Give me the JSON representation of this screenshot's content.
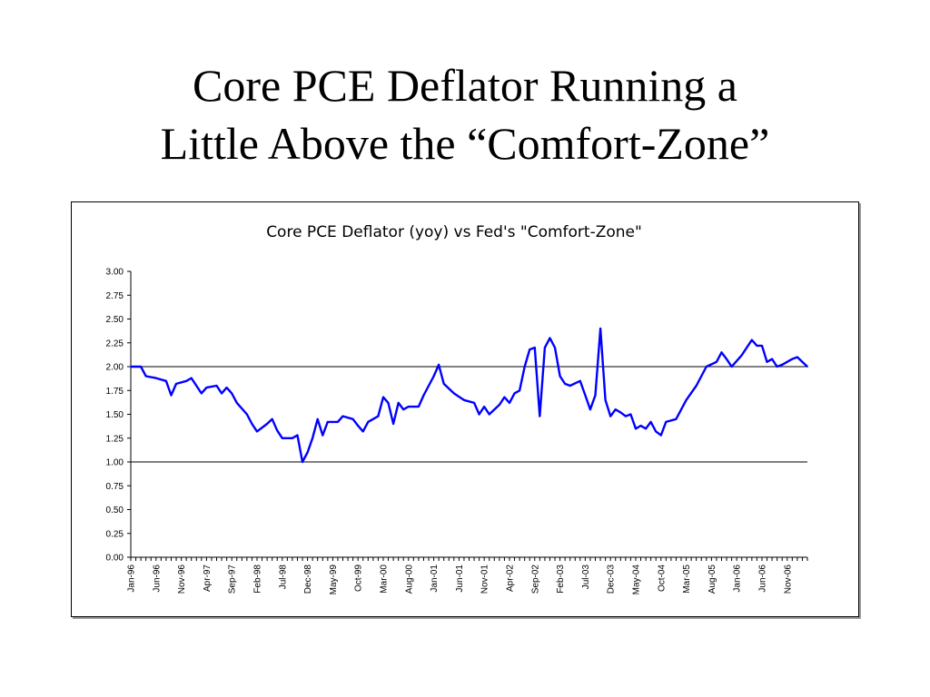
{
  "slide": {
    "title_line1": "Core PCE Deflator Running a",
    "title_line2": "Little Above the “Comfort-Zone”"
  },
  "chart_data": {
    "type": "line",
    "title": "Core PCE Deflator (yoy) vs Fed's \"Comfort-Zone\"",
    "xlabel": "",
    "ylabel": "",
    "ylim": [
      0,
      3
    ],
    "yticks": [
      "0.00",
      "0.25",
      "0.50",
      "0.75",
      "1.00",
      "1.25",
      "1.50",
      "1.75",
      "2.00",
      "2.25",
      "2.50",
      "2.75",
      "3.00"
    ],
    "x_tick_labels": [
      "Jan-96",
      "Jun-96",
      "Nov-96",
      "Apr-97",
      "Sep-97",
      "Feb-98",
      "Jul-98",
      "Dec-98",
      "May-99",
      "Oct-99",
      "Mar-00",
      "Aug-00",
      "Jan-01",
      "Jun-01",
      "Nov-01",
      "Apr-02",
      "Sep-02",
      "Feb-03",
      "Jul-03",
      "Dec-03",
      "May-04",
      "Oct-04",
      "Mar-05",
      "Aug-05",
      "Jan-06",
      "Jun-06",
      "Nov-06"
    ],
    "x_range": [
      "Jan-96",
      "Mar-07"
    ],
    "reference_lines": [
      1.0,
      2.0
    ],
    "grid": false,
    "legend": "none",
    "line_color": "#0000ff",
    "series": [
      {
        "points": [
          [
            "Jan-96",
            2.0
          ],
          [
            "Mar-96",
            2.0
          ],
          [
            "Apr-96",
            1.9
          ],
          [
            "Jun-96",
            1.88
          ],
          [
            "Aug-96",
            1.85
          ],
          [
            "Sep-96",
            1.7
          ],
          [
            "Oct-96",
            1.82
          ],
          [
            "Dec-96",
            1.85
          ],
          [
            "Jan-97",
            1.88
          ],
          [
            "Mar-97",
            1.72
          ],
          [
            "Apr-97",
            1.78
          ],
          [
            "Jun-97",
            1.8
          ],
          [
            "Jul-97",
            1.72
          ],
          [
            "Aug-97",
            1.78
          ],
          [
            "Sep-97",
            1.72
          ],
          [
            "Oct-97",
            1.62
          ],
          [
            "Dec-97",
            1.5
          ],
          [
            "Jan-98",
            1.4
          ],
          [
            "Feb-98",
            1.32
          ],
          [
            "Apr-98",
            1.4
          ],
          [
            "May-98",
            1.45
          ],
          [
            "Jun-98",
            1.33
          ],
          [
            "Jul-98",
            1.25
          ],
          [
            "Sep-98",
            1.25
          ],
          [
            "Oct-98",
            1.28
          ],
          [
            "Nov-98",
            1.0
          ],
          [
            "Dec-98",
            1.1
          ],
          [
            "Jan-99",
            1.25
          ],
          [
            "Feb-99",
            1.45
          ],
          [
            "Mar-99",
            1.28
          ],
          [
            "Apr-99",
            1.42
          ],
          [
            "Jun-99",
            1.42
          ],
          [
            "Jul-99",
            1.48
          ],
          [
            "Sep-99",
            1.45
          ],
          [
            "Oct-99",
            1.38
          ],
          [
            "Nov-99",
            1.32
          ],
          [
            "Dec-99",
            1.42
          ],
          [
            "Feb-00",
            1.48
          ],
          [
            "Mar-00",
            1.68
          ],
          [
            "Apr-00",
            1.62
          ],
          [
            "May-00",
            1.4
          ],
          [
            "Jun-00",
            1.62
          ],
          [
            "Jul-00",
            1.55
          ],
          [
            "Aug-00",
            1.58
          ],
          [
            "Oct-00",
            1.58
          ],
          [
            "Nov-00",
            1.7
          ],
          [
            "Jan-01",
            1.9
          ],
          [
            "Feb-01",
            2.02
          ],
          [
            "Mar-01",
            1.82
          ],
          [
            "May-01",
            1.72
          ],
          [
            "Jul-01",
            1.65
          ],
          [
            "Sep-01",
            1.62
          ],
          [
            "Oct-01",
            1.5
          ],
          [
            "Nov-01",
            1.58
          ],
          [
            "Dec-01",
            1.5
          ],
          [
            "Feb-02",
            1.6
          ],
          [
            "Mar-02",
            1.68
          ],
          [
            "Apr-02",
            1.62
          ],
          [
            "May-02",
            1.72
          ],
          [
            "Jun-02",
            1.75
          ],
          [
            "Jul-02",
            2.0
          ],
          [
            "Aug-02",
            2.18
          ],
          [
            "Sep-02",
            2.2
          ],
          [
            "Oct-02",
            1.48
          ],
          [
            "Nov-02",
            2.2
          ],
          [
            "Dec-02",
            2.3
          ],
          [
            "Jan-03",
            2.2
          ],
          [
            "Feb-03",
            1.9
          ],
          [
            "Mar-03",
            1.82
          ],
          [
            "Apr-03",
            1.8
          ],
          [
            "Jun-03",
            1.85
          ],
          [
            "Jul-03",
            1.7
          ],
          [
            "Aug-03",
            1.55
          ],
          [
            "Sep-03",
            1.7
          ],
          [
            "Oct-03",
            2.4
          ],
          [
            "Nov-03",
            1.65
          ],
          [
            "Dec-03",
            1.48
          ],
          [
            "Jan-04",
            1.55
          ],
          [
            "Feb-04",
            1.52
          ],
          [
            "Mar-04",
            1.48
          ],
          [
            "Apr-04",
            1.5
          ],
          [
            "May-04",
            1.35
          ],
          [
            "Jun-04",
            1.38
          ],
          [
            "Jul-04",
            1.35
          ],
          [
            "Aug-04",
            1.42
          ],
          [
            "Sep-04",
            1.32
          ],
          [
            "Oct-04",
            1.28
          ],
          [
            "Nov-04",
            1.42
          ],
          [
            "Jan-05",
            1.45
          ],
          [
            "Mar-05",
            1.65
          ],
          [
            "May-05",
            1.8
          ],
          [
            "Jul-05",
            2.0
          ],
          [
            "Sep-05",
            2.05
          ],
          [
            "Oct-05",
            2.15
          ],
          [
            "Nov-05",
            2.08
          ],
          [
            "Dec-05",
            2.0
          ],
          [
            "Feb-06",
            2.12
          ],
          [
            "Apr-06",
            2.28
          ],
          [
            "May-06",
            2.22
          ],
          [
            "Jun-06",
            2.22
          ],
          [
            "Jul-06",
            2.05
          ],
          [
            "Aug-06",
            2.08
          ],
          [
            "Sep-06",
            2.0
          ],
          [
            "Oct-06",
            2.02
          ],
          [
            "Dec-06",
            2.08
          ],
          [
            "Jan-07",
            2.1
          ],
          [
            "Feb-07",
            2.05
          ],
          [
            "Mar-07",
            2.0
          ]
        ]
      }
    ]
  }
}
